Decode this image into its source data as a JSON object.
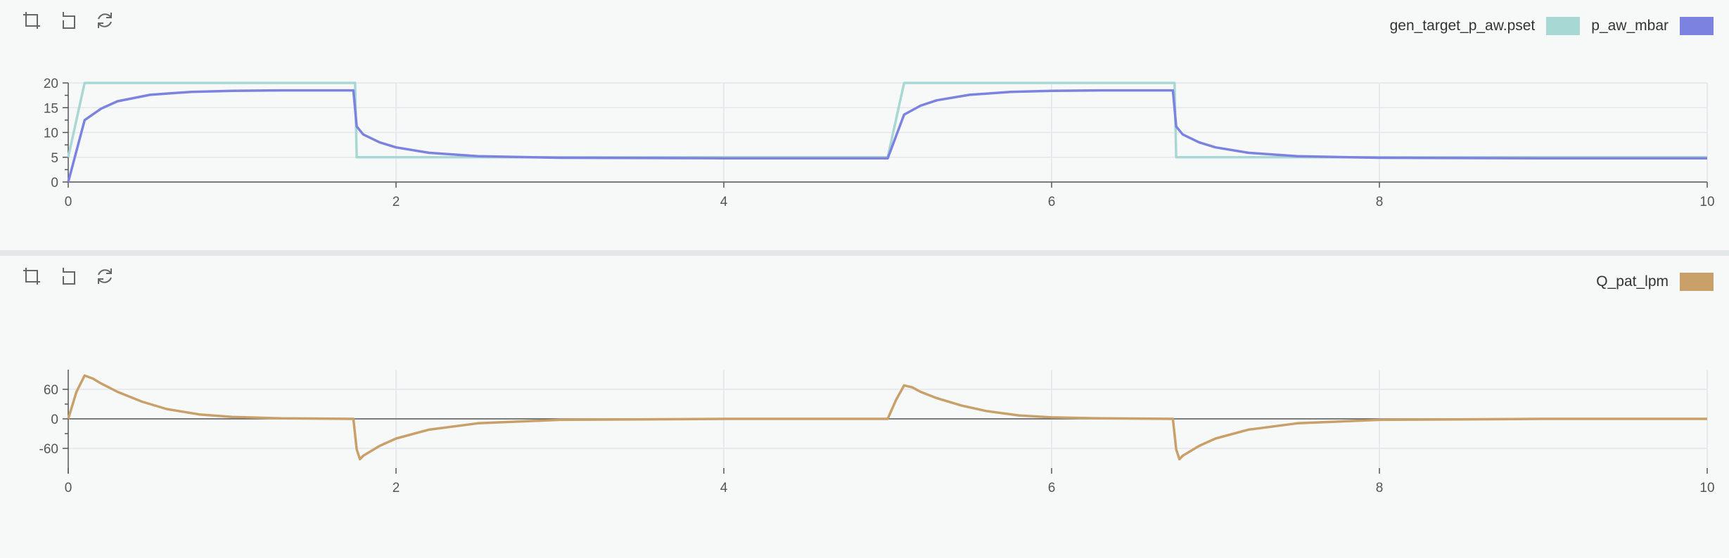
{
  "chart_data": [
    {
      "type": "line",
      "title": "",
      "xlabel": "",
      "ylabel": "",
      "xlim": [
        0,
        10
      ],
      "ylim": [
        0,
        20
      ],
      "xticks": [
        "0",
        "2",
        "4",
        "6",
        "8",
        "10"
      ],
      "yticks": [
        "0",
        "5",
        "10",
        "15",
        "20"
      ],
      "grid": true,
      "legend_position": "top-right",
      "series": [
        {
          "name": "gen_target_p_aw.pset",
          "color": "#a8d8d4",
          "x": [
            0,
            0.1,
            1.75,
            1.76,
            5.0,
            5.1,
            6.75,
            6.76,
            10
          ],
          "y": [
            5,
            20,
            20,
            5,
            5,
            20,
            20,
            5,
            5
          ]
        },
        {
          "name": "p_aw_mbar",
          "color": "#7b82e0",
          "x": [
            0,
            0.1,
            0.2,
            0.3,
            0.5,
            0.75,
            1.0,
            1.3,
            1.74,
            1.76,
            1.8,
            1.9,
            2.0,
            2.2,
            2.5,
            3.0,
            4.0,
            5.0,
            5.1,
            5.2,
            5.3,
            5.5,
            5.75,
            6.0,
            6.3,
            6.74,
            6.76,
            6.8,
            6.9,
            7.0,
            7.2,
            7.5,
            8.0,
            9.0,
            10
          ],
          "y": [
            0,
            12.5,
            14.8,
            16.3,
            17.6,
            18.2,
            18.4,
            18.5,
            18.5,
            11.2,
            9.6,
            8.0,
            7.0,
            5.9,
            5.2,
            4.9,
            4.8,
            4.8,
            13.6,
            15.4,
            16.5,
            17.6,
            18.2,
            18.4,
            18.5,
            18.5,
            11.2,
            9.6,
            8.0,
            7.0,
            5.9,
            5.2,
            4.9,
            4.8,
            4.8
          ]
        }
      ]
    },
    {
      "type": "line",
      "title": "",
      "xlabel": "",
      "ylabel": "",
      "xlim": [
        0,
        10
      ],
      "ylim": [
        -100,
        100
      ],
      "xticks": [
        "0",
        "2",
        "4",
        "6",
        "8",
        "10"
      ],
      "yticks": [
        "60",
        "0",
        "-60"
      ],
      "grid": true,
      "legend_position": "top-right",
      "series": [
        {
          "name": "Q_pat_lpm",
          "color": "#c9a06a",
          "x": [
            0,
            0.05,
            0.1,
            0.15,
            0.2,
            0.3,
            0.45,
            0.6,
            0.8,
            1.0,
            1.3,
            1.74,
            1.76,
            1.78,
            1.8,
            1.9,
            2.0,
            2.2,
            2.5,
            3.0,
            4.0,
            5.0,
            5.05,
            5.1,
            5.15,
            5.2,
            5.3,
            5.45,
            5.6,
            5.8,
            6.0,
            6.3,
            6.74,
            6.76,
            6.78,
            6.8,
            6.9,
            7.0,
            7.2,
            7.5,
            8.0,
            9.0,
            10
          ],
          "y": [
            0,
            55,
            88,
            82,
            72,
            55,
            35,
            20,
            9,
            4,
            1,
            0,
            -62,
            -82,
            -75,
            -55,
            -40,
            -22,
            -9,
            -2,
            0,
            0,
            38,
            68,
            64,
            55,
            42,
            27,
            16,
            7,
            3,
            1,
            0,
            -62,
            -82,
            -75,
            -55,
            -40,
            -22,
            -9,
            -2,
            0,
            0
          ]
        }
      ]
    }
  ]
}
